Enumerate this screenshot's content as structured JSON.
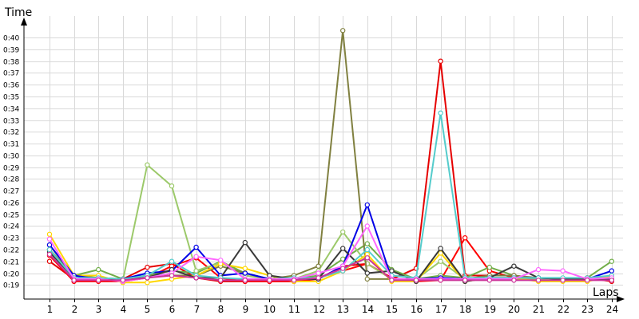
{
  "chart_data": {
    "type": "line",
    "xlabel": "Laps",
    "ylabel": "Time",
    "x": [
      1,
      2,
      3,
      4,
      5,
      6,
      7,
      8,
      9,
      10,
      11,
      12,
      13,
      14,
      15,
      16,
      17,
      18,
      19,
      20,
      21,
      22,
      23,
      24
    ],
    "y_ticks": [
      "0:19",
      "0:20",
      "0:21",
      "0:22",
      "0:23",
      "0:24",
      "0:25",
      "0:26",
      "0:27",
      "0:28",
      "0:29",
      "0:30",
      "0:31",
      "0:32",
      "0:33",
      "0:34",
      "0:35",
      "0:36",
      "0:37",
      "0:38",
      "0:39",
      "0:40"
    ],
    "ylim": [
      "0:17.8",
      "0:41.3"
    ],
    "grid": true,
    "series": [
      {
        "color": "#e60000",
        "values": [
          "0:21.0",
          "0:19.5",
          "0:19.5",
          "0:19.5",
          "0:20.5",
          "0:20.8",
          "0:19.6",
          "0:19.3",
          "0:19.3",
          "0:19.3",
          "0:19.3",
          "0:19.5",
          "0:20.6",
          "0:20.8",
          "0:19.5",
          "0:20.4",
          "0:38.0",
          "0:19.8",
          "0:19.8",
          "0:19.8",
          "0:19.4",
          "0:19.4",
          "0:19.6",
          "0:19.3"
        ]
      },
      {
        "color": "#ff0000",
        "values": [
          "0:21.5",
          "0:19.3",
          "0:19.3",
          "0:19.3",
          "0:19.6",
          "0:20.6",
          "0:21.3",
          "0:19.6",
          "0:19.3",
          "0:19.3",
          "0:19.3",
          "0:19.6",
          "0:20.2",
          "0:20.8",
          "0:19.6",
          "0:19.3",
          "0:19.4",
          "0:23.0",
          "0:20.2",
          "0:19.6",
          "0:19.4",
          "0:19.4",
          "0:19.6",
          "0:19.4"
        ]
      },
      {
        "color": "#70ad47",
        "values": [
          "0:22.0",
          "0:19.8",
          "0:20.3",
          "0:19.5",
          "0:19.8",
          "0:20.2",
          "0:20.0",
          "0:21.0",
          "0:20.0",
          "0:19.5",
          "0:19.5",
          "0:19.8",
          "0:21.2",
          "0:22.5",
          "0:20.3",
          "0:19.5",
          "0:19.8",
          "0:19.6",
          "0:20.5",
          "0:19.8",
          "0:19.5",
          "0:19.4",
          "0:19.6",
          "0:21.0"
        ]
      },
      {
        "color": "#9cc96a",
        "values": [
          "0:22.4",
          "0:19.6",
          "0:19.6",
          "0:19.4",
          "0:29.2",
          "0:27.4",
          "0:20.2",
          "0:20.9",
          "0:19.8",
          "0:19.5",
          "0:19.5",
          "0:20.2",
          "0:23.5",
          "0:20.8",
          "0:19.5",
          "0:19.5",
          "0:21.0",
          "0:19.5",
          "0:19.5",
          "0:19.5",
          "0:19.5",
          "0:19.5",
          "0:19.6",
          "0:19.6"
        ]
      },
      {
        "color": "#808040",
        "values": [
          "0:22.0",
          "0:19.8",
          "0:19.6",
          "0:19.5",
          "0:19.8",
          "0:19.8",
          "0:19.8",
          "0:20.6",
          "0:20.0",
          "0:19.5",
          "0:19.8",
          "0:20.6",
          "0:40.6",
          "0:19.5",
          "0:19.5",
          "0:19.5",
          "0:19.5",
          "0:19.5",
          "0:19.8",
          "0:19.8",
          "0:19.6",
          "0:19.5",
          "0:19.6",
          "0:19.5"
        ]
      },
      {
        "color": "#ffd700",
        "values": [
          "0:23.3",
          "0:19.8",
          "0:19.8",
          "0:19.2",
          "0:19.2",
          "0:19.5",
          "0:19.8",
          "0:20.8",
          "0:20.4",
          "0:19.8",
          "0:19.3",
          "0:19.3",
          "0:20.2",
          "0:21.6",
          "0:19.3",
          "0:19.3",
          "0:21.7",
          "0:19.3",
          "0:19.6",
          "0:19.6",
          "0:19.3",
          "0:19.3",
          "0:19.3",
          "0:19.8"
        ]
      },
      {
        "color": "#0000e6",
        "values": [
          "0:22.4",
          "0:19.8",
          "0:19.5",
          "0:19.5",
          "0:20.0",
          "0:20.2",
          "0:22.2",
          "0:19.8",
          "0:20.0",
          "0:19.5",
          "0:19.5",
          "0:19.5",
          "0:20.6",
          "0:25.8",
          "0:19.5",
          "0:19.5",
          "0:19.6",
          "0:19.5",
          "0:19.6",
          "0:19.6",
          "0:19.6",
          "0:19.5",
          "0:19.5",
          "0:20.2"
        ]
      },
      {
        "color": "#3a3a3a",
        "values": [
          "0:21.8",
          "0:19.6",
          "0:19.5",
          "0:19.5",
          "0:19.6",
          "0:20.3",
          "0:19.6",
          "0:19.6",
          "0:22.6",
          "0:19.8",
          "0:19.5",
          "0:19.5",
          "0:22.1",
          "0:20.0",
          "0:20.2",
          "0:19.3",
          "0:22.1",
          "0:19.3",
          "0:19.6",
          "0:20.6",
          "0:19.6",
          "0:19.5",
          "0:19.5",
          "0:19.5"
        ]
      },
      {
        "color": "#55cccc",
        "values": [
          "0:22.0",
          "0:19.6",
          "0:19.6",
          "0:19.5",
          "0:19.8",
          "0:21.0",
          "0:19.8",
          "0:19.6",
          "0:19.5",
          "0:19.5",
          "0:19.6",
          "0:19.6",
          "0:20.2",
          "0:22.0",
          "0:19.8",
          "0:19.6",
          "0:33.6",
          "0:19.6",
          "0:19.6",
          "0:19.6",
          "0:19.6",
          "0:19.6",
          "0:19.6",
          "0:19.8"
        ]
      },
      {
        "color": "#ff66ff",
        "values": [
          "0:22.9",
          "0:19.5",
          "0:19.5",
          "0:19.3",
          "0:19.6",
          "0:20.0",
          "0:21.4",
          "0:21.1",
          "0:19.5",
          "0:19.5",
          "0:19.5",
          "0:20.0",
          "0:20.6",
          "0:24.0",
          "0:19.5",
          "0:19.5",
          "0:19.5",
          "0:19.5",
          "0:19.5",
          "0:19.5",
          "0:20.3",
          "0:20.2",
          "0:19.5",
          "0:19.6"
        ]
      },
      {
        "color": "#cc3399",
        "values": [
          "0:21.6",
          "0:19.4",
          "0:19.4",
          "0:19.4",
          "0:19.6",
          "0:19.8",
          "0:19.6",
          "0:19.4",
          "0:19.4",
          "0:19.4",
          "0:19.4",
          "0:19.6",
          "0:20.4",
          "0:21.3",
          "0:19.4",
          "0:19.4",
          "0:19.4",
          "0:19.4",
          "0:19.4",
          "0:19.4",
          "0:19.4",
          "0:19.4",
          "0:19.4",
          "0:19.4"
        ]
      }
    ]
  }
}
